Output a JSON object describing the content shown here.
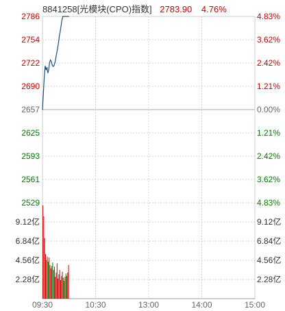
{
  "header": {
    "title": "8841258[光模块(CPO)指数]",
    "price": "2783.90",
    "change_pct": "4.76%"
  },
  "colors": {
    "up": "#cc0000",
    "down": "#008000",
    "flat": "#666666",
    "price_line": "#1f4e79",
    "grid": "#d4d4d4"
  },
  "chart_data": [
    {
      "type": "line",
      "title": "",
      "base_price": 2657,
      "ylim": [
        2529,
        2786
      ],
      "y_ticks_left": [
        "2786",
        "2754",
        "2722",
        "2690",
        "2657",
        "2625",
        "2593",
        "2561",
        "2529"
      ],
      "y_ticks_right": [
        "4.83%",
        "3.62%",
        "2.42%",
        "1.21%",
        "0.00%",
        "1.21%",
        "2.42%",
        "3.62%",
        "4.83%"
      ],
      "x_ticks": [
        "09:30",
        "10:30",
        "13:00",
        "14:00",
        "15:00"
      ],
      "x_range_minutes": 240,
      "minutes": [
        0,
        1,
        2,
        3,
        4,
        5,
        6,
        7,
        8,
        9,
        10,
        11,
        12,
        13,
        14,
        15,
        16,
        17,
        18,
        19,
        20,
        21,
        22,
        23,
        24,
        25,
        26,
        27,
        28,
        29,
        30
      ],
      "values": [
        2657,
        2680,
        2702,
        2718,
        2712,
        2716,
        2708,
        2712,
        2722,
        2726,
        2724,
        2719,
        2717,
        2718,
        2722,
        2728,
        2735,
        2742,
        2749,
        2758,
        2765,
        2773,
        2781,
        2786,
        2786,
        2786,
        2786,
        2786,
        2786,
        2786,
        2786
      ]
    },
    {
      "type": "bar",
      "title": "",
      "unit": "亿",
      "ylim": [
        0,
        11.4
      ],
      "y_ticks": [
        "9.12亿",
        "6.84亿",
        "4.56亿",
        "2.28亿"
      ],
      "y_tick_values": [
        9.12,
        6.84,
        4.56,
        2.28
      ],
      "minutes": [
        1,
        2,
        3,
        4,
        5,
        6,
        7,
        8,
        9,
        10,
        11,
        12,
        13,
        14,
        15,
        16,
        17,
        18,
        19,
        20,
        21,
        22,
        23,
        24,
        25,
        26,
        27,
        28,
        29,
        30
      ],
      "values": [
        11.1,
        9.8,
        7.2,
        5.3,
        4.6,
        5.0,
        4.4,
        4.9,
        4.0,
        3.6,
        3.9,
        4.3,
        3.4,
        3.8,
        2.6,
        3.1,
        4.2,
        2.4,
        2.9,
        3.4,
        2.2,
        2.7,
        3.2,
        2.5,
        2.1,
        2.6,
        3.0,
        2.7,
        3.1,
        4.0
      ],
      "directions": [
        "up",
        "up",
        "up",
        "up",
        "down",
        "up",
        "down",
        "up",
        "up",
        "up",
        "down",
        "down",
        "down",
        "up",
        "up",
        "up",
        "up",
        "up",
        "up",
        "up",
        "up",
        "up",
        "up",
        "down",
        "down",
        "up",
        "down",
        "up",
        "up",
        "up"
      ]
    }
  ]
}
